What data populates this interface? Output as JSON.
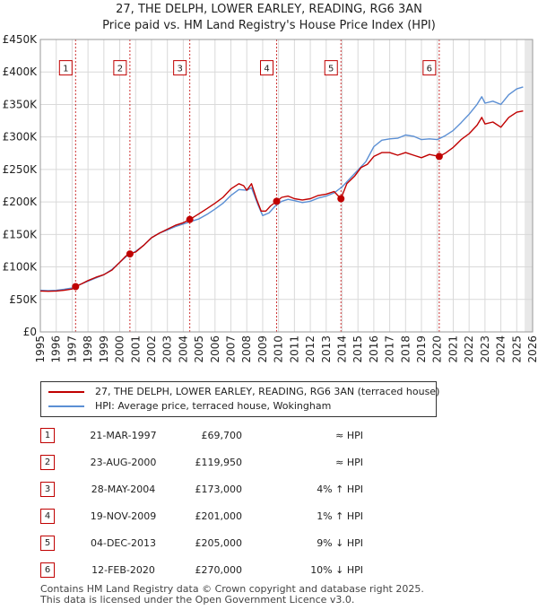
{
  "title": {
    "line1": "27, THE DELPH, LOWER EARLEY, READING, RG6 3AN",
    "line2": "Price paid vs. HM Land Registry's House Price Index (HPI)"
  },
  "chart_data": {
    "type": "line",
    "y_ticks": [
      {
        "value": 0,
        "label": "£0"
      },
      {
        "value": 50000,
        "label": "£50K"
      },
      {
        "value": 100000,
        "label": "£100K"
      },
      {
        "value": 150000,
        "label": "£150K"
      },
      {
        "value": 200000,
        "label": "£200K"
      },
      {
        "value": 250000,
        "label": "£250K"
      },
      {
        "value": 300000,
        "label": "£300K"
      },
      {
        "value": 350000,
        "label": "£350K"
      },
      {
        "value": 400000,
        "label": "£400K"
      },
      {
        "value": 450000,
        "label": "£450K"
      }
    ],
    "x_ticks": [
      "1995",
      "1996",
      "1997",
      "1998",
      "1999",
      "2000",
      "2001",
      "2002",
      "2003",
      "2004",
      "2005",
      "2006",
      "2007",
      "2008",
      "2009",
      "2010",
      "2011",
      "2012",
      "2013",
      "2014",
      "2015",
      "2016",
      "2017",
      "2018",
      "2019",
      "2020",
      "2021",
      "2022",
      "2023",
      "2024",
      "2025",
      "2026"
    ],
    "xlim": [
      1995,
      2026
    ],
    "ylim": [
      0,
      450000
    ],
    "grid": true,
    "future_shading_from": 2025.5,
    "series": [
      {
        "name": "27, THE DELPH, LOWER EARLEY, READING, RG6 3AN (terraced house)",
        "color": "#c00000",
        "points": [
          [
            1995.0,
            63000
          ],
          [
            1995.5,
            62500
          ],
          [
            1996.0,
            63000
          ],
          [
            1996.5,
            64000
          ],
          [
            1997.0,
            66000
          ],
          [
            1997.22,
            69700
          ],
          [
            1997.6,
            74000
          ],
          [
            1998.0,
            79000
          ],
          [
            1998.5,
            84000
          ],
          [
            1999.0,
            88000
          ],
          [
            1999.5,
            95000
          ],
          [
            2000.0,
            107000
          ],
          [
            2000.4,
            117000
          ],
          [
            2000.64,
            119950
          ],
          [
            2001.0,
            123000
          ],
          [
            2001.5,
            133000
          ],
          [
            2002.0,
            145000
          ],
          [
            2002.5,
            152000
          ],
          [
            2003.0,
            158000
          ],
          [
            2003.5,
            164000
          ],
          [
            2004.0,
            168000
          ],
          [
            2004.41,
            173000
          ],
          [
            2005.0,
            182000
          ],
          [
            2005.5,
            190000
          ],
          [
            2006.0,
            198000
          ],
          [
            2006.5,
            207000
          ],
          [
            2007.0,
            220000
          ],
          [
            2007.5,
            228000
          ],
          [
            2007.8,
            225000
          ],
          [
            2008.0,
            218000
          ],
          [
            2008.3,
            228000
          ],
          [
            2008.6,
            205000
          ],
          [
            2008.9,
            186000
          ],
          [
            2009.2,
            186000
          ],
          [
            2009.5,
            194000
          ],
          [
            2009.88,
            201000
          ],
          [
            2010.2,
            207000
          ],
          [
            2010.6,
            209000
          ],
          [
            2011.0,
            205000
          ],
          [
            2011.5,
            203000
          ],
          [
            2012.0,
            205000
          ],
          [
            2012.5,
            210000
          ],
          [
            2013.0,
            212000
          ],
          [
            2013.5,
            216000
          ],
          [
            2013.93,
            205000
          ],
          [
            2014.3,
            228000
          ],
          [
            2014.8,
            240000
          ],
          [
            2015.2,
            253000
          ],
          [
            2015.6,
            258000
          ],
          [
            2016.0,
            270000
          ],
          [
            2016.5,
            276000
          ],
          [
            2017.0,
            276000
          ],
          [
            2017.5,
            272000
          ],
          [
            2018.0,
            276000
          ],
          [
            2018.5,
            272000
          ],
          [
            2019.0,
            268000
          ],
          [
            2019.5,
            273000
          ],
          [
            2020.12,
            270000
          ],
          [
            2020.5,
            275000
          ],
          [
            2021.0,
            284000
          ],
          [
            2021.5,
            296000
          ],
          [
            2022.0,
            305000
          ],
          [
            2022.5,
            318000
          ],
          [
            2022.8,
            330000
          ],
          [
            2023.0,
            320000
          ],
          [
            2023.5,
            323000
          ],
          [
            2024.0,
            315000
          ],
          [
            2024.5,
            330000
          ],
          [
            2025.0,
            338000
          ],
          [
            2025.4,
            340000
          ]
        ]
      },
      {
        "name": "HPI: Average price, terraced house, Wokingham",
        "color": "#5b8fd4",
        "points": [
          [
            1995.0,
            64000
          ],
          [
            1995.5,
            63500
          ],
          [
            1996.0,
            64000
          ],
          [
            1996.5,
            65500
          ],
          [
            1997.0,
            67500
          ],
          [
            1997.5,
            73000
          ],
          [
            1998.0,
            78000
          ],
          [
            1998.5,
            83000
          ],
          [
            1999.0,
            88000
          ],
          [
            1999.5,
            96000
          ],
          [
            2000.0,
            107000
          ],
          [
            2000.5,
            118000
          ],
          [
            2001.0,
            124000
          ],
          [
            2001.5,
            133000
          ],
          [
            2002.0,
            145000
          ],
          [
            2002.5,
            152000
          ],
          [
            2003.0,
            157000
          ],
          [
            2003.5,
            162000
          ],
          [
            2004.0,
            166000
          ],
          [
            2004.5,
            170000
          ],
          [
            2005.0,
            174000
          ],
          [
            2005.5,
            181000
          ],
          [
            2006.0,
            189000
          ],
          [
            2006.5,
            198000
          ],
          [
            2007.0,
            210000
          ],
          [
            2007.5,
            219000
          ],
          [
            2008.0,
            218000
          ],
          [
            2008.3,
            222000
          ],
          [
            2008.7,
            196000
          ],
          [
            2009.0,
            179000
          ],
          [
            2009.4,
            183000
          ],
          [
            2009.8,
            194000
          ],
          [
            2010.2,
            201000
          ],
          [
            2010.6,
            204000
          ],
          [
            2011.0,
            202000
          ],
          [
            2011.5,
            199000
          ],
          [
            2012.0,
            201000
          ],
          [
            2012.5,
            206000
          ],
          [
            2013.0,
            209000
          ],
          [
            2013.5,
            214000
          ],
          [
            2014.0,
            223000
          ],
          [
            2014.5,
            236000
          ],
          [
            2015.0,
            249000
          ],
          [
            2015.5,
            262000
          ],
          [
            2016.0,
            285000
          ],
          [
            2016.5,
            295000
          ],
          [
            2017.0,
            297000
          ],
          [
            2017.5,
            298000
          ],
          [
            2018.0,
            303000
          ],
          [
            2018.5,
            301000
          ],
          [
            2019.0,
            296000
          ],
          [
            2019.5,
            297000
          ],
          [
            2020.0,
            296000
          ],
          [
            2020.5,
            302000
          ],
          [
            2021.0,
            310000
          ],
          [
            2021.5,
            322000
          ],
          [
            2022.0,
            335000
          ],
          [
            2022.5,
            350000
          ],
          [
            2022.8,
            362000
          ],
          [
            2023.0,
            352000
          ],
          [
            2023.5,
            355000
          ],
          [
            2024.0,
            350000
          ],
          [
            2024.5,
            365000
          ],
          [
            2025.0,
            374000
          ],
          [
            2025.4,
            377000
          ]
        ]
      }
    ],
    "sales": [
      {
        "n": "1",
        "x": 1997.22,
        "price_value": 69700
      },
      {
        "n": "2",
        "x": 2000.64,
        "price_value": 119950
      },
      {
        "n": "3",
        "x": 2004.41,
        "price_value": 173000
      },
      {
        "n": "4",
        "x": 2009.88,
        "price_value": 201000
      },
      {
        "n": "5",
        "x": 2013.93,
        "price_value": 205000
      },
      {
        "n": "6",
        "x": 2020.12,
        "price_value": 270000
      }
    ],
    "annotation_label_value": 405000
  },
  "legend": {
    "series1": "27, THE DELPH, LOWER EARLEY, READING, RG6 3AN (terraced house)",
    "series2": "HPI: Average price, terraced house, Wokingham"
  },
  "table": [
    {
      "n": "1",
      "date": "21-MAR-1997",
      "price": "£69,700",
      "hpi": "≈ HPI"
    },
    {
      "n": "2",
      "date": "23-AUG-2000",
      "price": "£119,950",
      "hpi": "≈ HPI"
    },
    {
      "n": "3",
      "date": "28-MAY-2004",
      "price": "£173,000",
      "hpi": "4% ↑ HPI"
    },
    {
      "n": "4",
      "date": "19-NOV-2009",
      "price": "£201,000",
      "hpi": "1% ↑ HPI"
    },
    {
      "n": "5",
      "date": "04-DEC-2013",
      "price": "£205,000",
      "hpi": "9% ↓ HPI"
    },
    {
      "n": "6",
      "date": "12-FEB-2020",
      "price": "£270,000",
      "hpi": "10% ↓ HPI"
    }
  ],
  "footer": {
    "line1": "Contains HM Land Registry data © Crown copyright and database right 2025.",
    "line2": "This data is licensed under the Open Government Licence v3.0."
  }
}
